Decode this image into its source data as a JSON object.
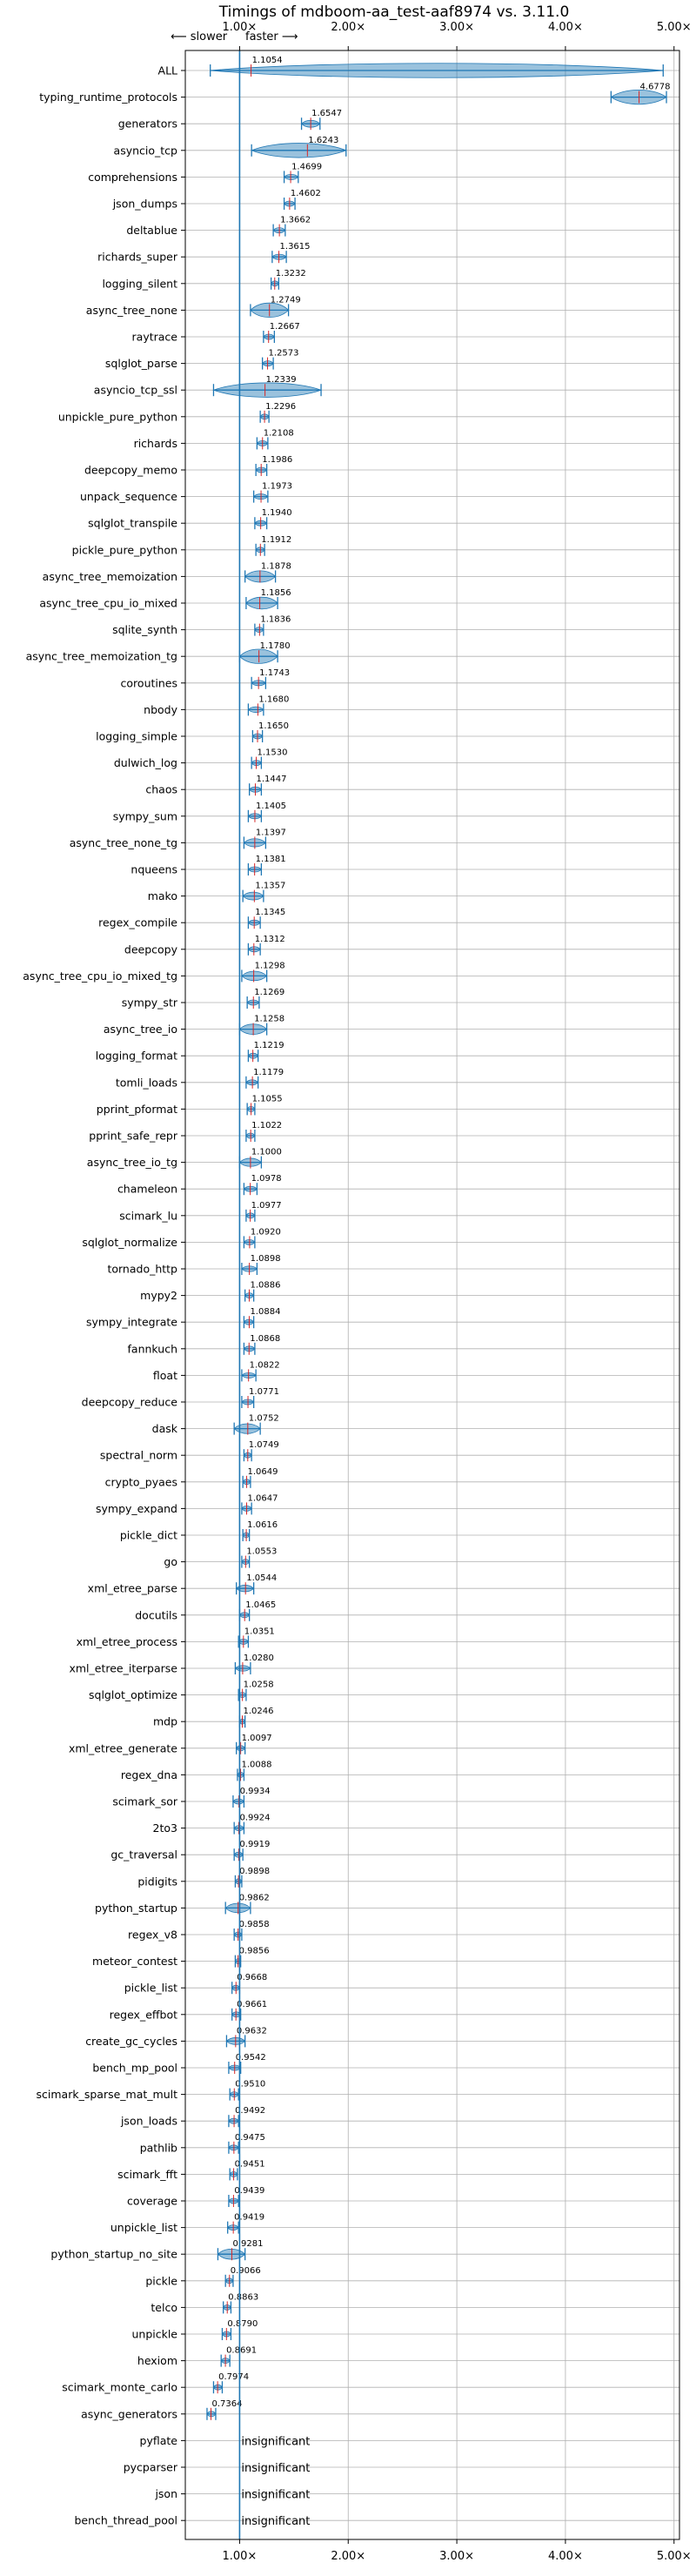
{
  "chart_data": {
    "type": "violin",
    "title": "Timings of mdboom-aa_test-aaf8974 vs. 3.11.0",
    "direction_hint": {
      "slower": "⟵ slower",
      "faster": "faster ⟶"
    },
    "xlim": [
      0.5,
      5.05
    ],
    "xticks": [
      1.0,
      2.0,
      3.0,
      4.0,
      5.0
    ],
    "xtick_labels": [
      "1.00×",
      "2.00×",
      "3.00×",
      "4.00×",
      "5.00×"
    ],
    "reference_line": 1.0,
    "grid": true,
    "insignificant_text": "insignificant",
    "colors": {
      "violin": "#1f77b4",
      "mean": "#d62728",
      "grid": "#b0b0b0",
      "axis": "#000000"
    },
    "benchmarks": [
      {
        "name": "ALL",
        "value": "1.1054",
        "x": 1.1054,
        "lo": 0.73,
        "hi": 4.9
      },
      {
        "name": "typing_runtime_protocols",
        "value": "4.6778",
        "x": 4.6778,
        "lo": 4.42,
        "hi": 4.93
      },
      {
        "name": "generators",
        "value": "1.6547",
        "x": 1.6547,
        "lo": 1.57,
        "hi": 1.74
      },
      {
        "name": "asyncio_tcp",
        "value": "1.6243",
        "x": 1.6243,
        "lo": 1.11,
        "hi": 1.98
      },
      {
        "name": "comprehensions",
        "value": "1.4699",
        "x": 1.4699,
        "lo": 1.41,
        "hi": 1.54
      },
      {
        "name": "json_dumps",
        "value": "1.4602",
        "x": 1.4602,
        "lo": 1.41,
        "hi": 1.51
      },
      {
        "name": "deltablue",
        "value": "1.3662",
        "x": 1.3662,
        "lo": 1.31,
        "hi": 1.42
      },
      {
        "name": "richards_super",
        "value": "1.3615",
        "x": 1.3615,
        "lo": 1.3,
        "hi": 1.43
      },
      {
        "name": "logging_silent",
        "value": "1.3232",
        "x": 1.3232,
        "lo": 1.29,
        "hi": 1.36
      },
      {
        "name": "async_tree_none",
        "value": "1.2749",
        "x": 1.2749,
        "lo": 1.1,
        "hi": 1.45
      },
      {
        "name": "raytrace",
        "value": "1.2667",
        "x": 1.2667,
        "lo": 1.22,
        "hi": 1.32
      },
      {
        "name": "sqlglot_parse",
        "value": "1.2573",
        "x": 1.2573,
        "lo": 1.21,
        "hi": 1.31
      },
      {
        "name": "asyncio_tcp_ssl",
        "value": "1.2339",
        "x": 1.2339,
        "lo": 0.76,
        "hi": 1.75
      },
      {
        "name": "unpickle_pure_python",
        "value": "1.2296",
        "x": 1.2296,
        "lo": 1.19,
        "hi": 1.27
      },
      {
        "name": "richards",
        "value": "1.2108",
        "x": 1.2108,
        "lo": 1.16,
        "hi": 1.26
      },
      {
        "name": "deepcopy_memo",
        "value": "1.1986",
        "x": 1.1986,
        "lo": 1.15,
        "hi": 1.25
      },
      {
        "name": "unpack_sequence",
        "value": "1.1973",
        "x": 1.1973,
        "lo": 1.13,
        "hi": 1.26
      },
      {
        "name": "sqlglot_transpile",
        "value": "1.1940",
        "x": 1.194,
        "lo": 1.14,
        "hi": 1.25
      },
      {
        "name": "pickle_pure_python",
        "value": "1.1912",
        "x": 1.1912,
        "lo": 1.15,
        "hi": 1.23
      },
      {
        "name": "async_tree_memoization",
        "value": "1.1878",
        "x": 1.1878,
        "lo": 1.05,
        "hi": 1.33
      },
      {
        "name": "async_tree_cpu_io_mixed",
        "value": "1.1856",
        "x": 1.1856,
        "lo": 1.06,
        "hi": 1.35
      },
      {
        "name": "sqlite_synth",
        "value": "1.1836",
        "x": 1.1836,
        "lo": 1.14,
        "hi": 1.22
      },
      {
        "name": "async_tree_memoization_tg",
        "value": "1.1780",
        "x": 1.178,
        "lo": 1.0,
        "hi": 1.35
      },
      {
        "name": "coroutines",
        "value": "1.1743",
        "x": 1.1743,
        "lo": 1.11,
        "hi": 1.24
      },
      {
        "name": "nbody",
        "value": "1.1680",
        "x": 1.168,
        "lo": 1.08,
        "hi": 1.22
      },
      {
        "name": "logging_simple",
        "value": "1.1650",
        "x": 1.165,
        "lo": 1.12,
        "hi": 1.21
      },
      {
        "name": "dulwich_log",
        "value": "1.1530",
        "x": 1.153,
        "lo": 1.11,
        "hi": 1.2
      },
      {
        "name": "chaos",
        "value": "1.1447",
        "x": 1.1447,
        "lo": 1.09,
        "hi": 1.2
      },
      {
        "name": "sympy_sum",
        "value": "1.1405",
        "x": 1.1405,
        "lo": 1.08,
        "hi": 1.2
      },
      {
        "name": "async_tree_none_tg",
        "value": "1.1397",
        "x": 1.1397,
        "lo": 1.04,
        "hi": 1.24
      },
      {
        "name": "nqueens",
        "value": "1.1381",
        "x": 1.1381,
        "lo": 1.08,
        "hi": 1.2
      },
      {
        "name": "mako",
        "value": "1.1357",
        "x": 1.1357,
        "lo": 1.03,
        "hi": 1.22
      },
      {
        "name": "regex_compile",
        "value": "1.1345",
        "x": 1.1345,
        "lo": 1.08,
        "hi": 1.19
      },
      {
        "name": "deepcopy",
        "value": "1.1312",
        "x": 1.1312,
        "lo": 1.08,
        "hi": 1.19
      },
      {
        "name": "async_tree_cpu_io_mixed_tg",
        "value": "1.1298",
        "x": 1.1298,
        "lo": 1.02,
        "hi": 1.25
      },
      {
        "name": "sympy_str",
        "value": "1.1269",
        "x": 1.1269,
        "lo": 1.07,
        "hi": 1.18
      },
      {
        "name": "async_tree_io",
        "value": "1.1258",
        "x": 1.1258,
        "lo": 1.0,
        "hi": 1.25
      },
      {
        "name": "logging_format",
        "value": "1.1219",
        "x": 1.1219,
        "lo": 1.08,
        "hi": 1.17
      },
      {
        "name": "tomli_loads",
        "value": "1.1179",
        "x": 1.1179,
        "lo": 1.06,
        "hi": 1.17
      },
      {
        "name": "pprint_pformat",
        "value": "1.1055",
        "x": 1.1055,
        "lo": 1.07,
        "hi": 1.14
      },
      {
        "name": "pprint_safe_repr",
        "value": "1.1022",
        "x": 1.1022,
        "lo": 1.06,
        "hi": 1.14
      },
      {
        "name": "async_tree_io_tg",
        "value": "1.1000",
        "x": 1.1,
        "lo": 1.0,
        "hi": 1.2
      },
      {
        "name": "chameleon",
        "value": "1.0978",
        "x": 1.0978,
        "lo": 1.04,
        "hi": 1.16
      },
      {
        "name": "scimark_lu",
        "value": "1.0977",
        "x": 1.0977,
        "lo": 1.06,
        "hi": 1.14
      },
      {
        "name": "sqlglot_normalize",
        "value": "1.0920",
        "x": 1.092,
        "lo": 1.04,
        "hi": 1.14
      },
      {
        "name": "tornado_http",
        "value": "1.0898",
        "x": 1.0898,
        "lo": 1.02,
        "hi": 1.16
      },
      {
        "name": "mypy2",
        "value": "1.0886",
        "x": 1.0886,
        "lo": 1.05,
        "hi": 1.13
      },
      {
        "name": "sympy_integrate",
        "value": "1.0884",
        "x": 1.0884,
        "lo": 1.04,
        "hi": 1.13
      },
      {
        "name": "fannkuch",
        "value": "1.0868",
        "x": 1.0868,
        "lo": 1.04,
        "hi": 1.14
      },
      {
        "name": "float",
        "value": "1.0822",
        "x": 1.0822,
        "lo": 1.02,
        "hi": 1.15
      },
      {
        "name": "deepcopy_reduce",
        "value": "1.0771",
        "x": 1.0771,
        "lo": 1.02,
        "hi": 1.13
      },
      {
        "name": "dask",
        "value": "1.0752",
        "x": 1.0752,
        "lo": 0.95,
        "hi": 1.19
      },
      {
        "name": "spectral_norm",
        "value": "1.0749",
        "x": 1.0749,
        "lo": 1.04,
        "hi": 1.11
      },
      {
        "name": "crypto_pyaes",
        "value": "1.0649",
        "x": 1.0649,
        "lo": 1.03,
        "hi": 1.1
      },
      {
        "name": "sympy_expand",
        "value": "1.0647",
        "x": 1.0647,
        "lo": 1.02,
        "hi": 1.11
      },
      {
        "name": "pickle_dict",
        "value": "1.0616",
        "x": 1.0616,
        "lo": 1.03,
        "hi": 1.09
      },
      {
        "name": "go",
        "value": "1.0553",
        "x": 1.0553,
        "lo": 1.02,
        "hi": 1.09
      },
      {
        "name": "xml_etree_parse",
        "value": "1.0544",
        "x": 1.0544,
        "lo": 0.97,
        "hi": 1.13
      },
      {
        "name": "docutils",
        "value": "1.0465",
        "x": 1.0465,
        "lo": 1.0,
        "hi": 1.09
      },
      {
        "name": "xml_etree_process",
        "value": "1.0351",
        "x": 1.0351,
        "lo": 0.99,
        "hi": 1.08
      },
      {
        "name": "xml_etree_iterparse",
        "value": "1.0280",
        "x": 1.028,
        "lo": 0.96,
        "hi": 1.1
      },
      {
        "name": "sqlglot_optimize",
        "value": "1.0258",
        "x": 1.0258,
        "lo": 0.99,
        "hi": 1.06
      },
      {
        "name": "mdp",
        "value": "1.0246",
        "x": 1.0246,
        "lo": 1.0,
        "hi": 1.05
      },
      {
        "name": "xml_etree_generate",
        "value": "1.0097",
        "x": 1.0097,
        "lo": 0.97,
        "hi": 1.05
      },
      {
        "name": "regex_dna",
        "value": "1.0088",
        "x": 1.0088,
        "lo": 0.98,
        "hi": 1.04
      },
      {
        "name": "scimark_sor",
        "value": "0.9934",
        "x": 0.9934,
        "lo": 0.94,
        "hi": 1.04
      },
      {
        "name": "2to3",
        "value": "0.9924",
        "x": 0.9924,
        "lo": 0.95,
        "hi": 1.04
      },
      {
        "name": "gc_traversal",
        "value": "0.9919",
        "x": 0.9919,
        "lo": 0.95,
        "hi": 1.03
      },
      {
        "name": "pidigits",
        "value": "0.9898",
        "x": 0.9898,
        "lo": 0.96,
        "hi": 1.02
      },
      {
        "name": "python_startup",
        "value": "0.9862",
        "x": 0.9862,
        "lo": 0.87,
        "hi": 1.1
      },
      {
        "name": "regex_v8",
        "value": "0.9858",
        "x": 0.9858,
        "lo": 0.95,
        "hi": 1.02
      },
      {
        "name": "meteor_contest",
        "value": "0.9856",
        "x": 0.9856,
        "lo": 0.96,
        "hi": 1.01
      },
      {
        "name": "pickle_list",
        "value": "0.9668",
        "x": 0.9668,
        "lo": 0.93,
        "hi": 1.0
      },
      {
        "name": "regex_effbot",
        "value": "0.9661",
        "x": 0.9661,
        "lo": 0.93,
        "hi": 1.01
      },
      {
        "name": "create_gc_cycles",
        "value": "0.9632",
        "x": 0.9632,
        "lo": 0.88,
        "hi": 1.05
      },
      {
        "name": "bench_mp_pool",
        "value": "0.9542",
        "x": 0.9542,
        "lo": 0.9,
        "hi": 1.01
      },
      {
        "name": "scimark_sparse_mat_mult",
        "value": "0.9510",
        "x": 0.951,
        "lo": 0.91,
        "hi": 0.99
      },
      {
        "name": "json_loads",
        "value": "0.9492",
        "x": 0.9492,
        "lo": 0.9,
        "hi": 0.99
      },
      {
        "name": "pathlib",
        "value": "0.9475",
        "x": 0.9475,
        "lo": 0.9,
        "hi": 0.99
      },
      {
        "name": "scimark_fft",
        "value": "0.9451",
        "x": 0.9451,
        "lo": 0.91,
        "hi": 0.98
      },
      {
        "name": "coverage",
        "value": "0.9439",
        "x": 0.9439,
        "lo": 0.9,
        "hi": 0.99
      },
      {
        "name": "unpickle_list",
        "value": "0.9419",
        "x": 0.9419,
        "lo": 0.89,
        "hi": 0.99
      },
      {
        "name": "python_startup_no_site",
        "value": "0.9281",
        "x": 0.9281,
        "lo": 0.8,
        "hi": 1.05
      },
      {
        "name": "pickle",
        "value": "0.9066",
        "x": 0.9066,
        "lo": 0.87,
        "hi": 0.94
      },
      {
        "name": "telco",
        "value": "0.8863",
        "x": 0.8863,
        "lo": 0.85,
        "hi": 0.92
      },
      {
        "name": "unpickle",
        "value": "0.8790",
        "x": 0.879,
        "lo": 0.84,
        "hi": 0.92
      },
      {
        "name": "hexiom",
        "value": "0.8691",
        "x": 0.8691,
        "lo": 0.83,
        "hi": 0.91
      },
      {
        "name": "scimark_monte_carlo",
        "value": "0.7974",
        "x": 0.7974,
        "lo": 0.76,
        "hi": 0.84
      },
      {
        "name": "async_generators",
        "value": "0.7364",
        "x": 0.7364,
        "lo": 0.7,
        "hi": 0.78
      },
      {
        "name": "pyflate",
        "value": "",
        "insignificant": true
      },
      {
        "name": "pycparser",
        "value": "",
        "insignificant": true
      },
      {
        "name": "json",
        "value": "",
        "insignificant": true
      },
      {
        "name": "bench_thread_pool",
        "value": "",
        "insignificant": true
      }
    ]
  }
}
